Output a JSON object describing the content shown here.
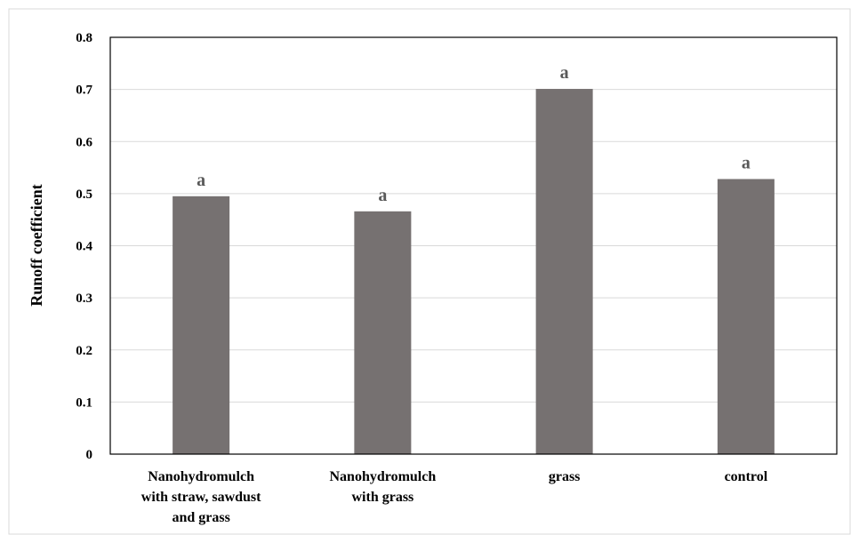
{
  "chart_data": {
    "type": "bar",
    "categories": [
      [
        "Nanohydromulch",
        "with straw, sawdust",
        "and grass"
      ],
      [
        "Nanohydromulch",
        "with grass"
      ],
      [
        "grass"
      ],
      [
        "control"
      ]
    ],
    "values": [
      0.495,
      0.466,
      0.701,
      0.528
    ],
    "data_labels": [
      "a",
      "a",
      "a",
      "a"
    ],
    "ylabel": "Runoff coefficient",
    "ylim": [
      0,
      0.8
    ],
    "yticks": [
      "0",
      "0.1",
      "0.2",
      "0.3",
      "0.4",
      "0.5",
      "0.6",
      "0.7",
      "0.8"
    ],
    "grid": true,
    "legend": "none",
    "colors": {
      "bar": "#767171",
      "grid": "#d9d9d9",
      "data_label": "#595959",
      "border": "#000000"
    }
  }
}
